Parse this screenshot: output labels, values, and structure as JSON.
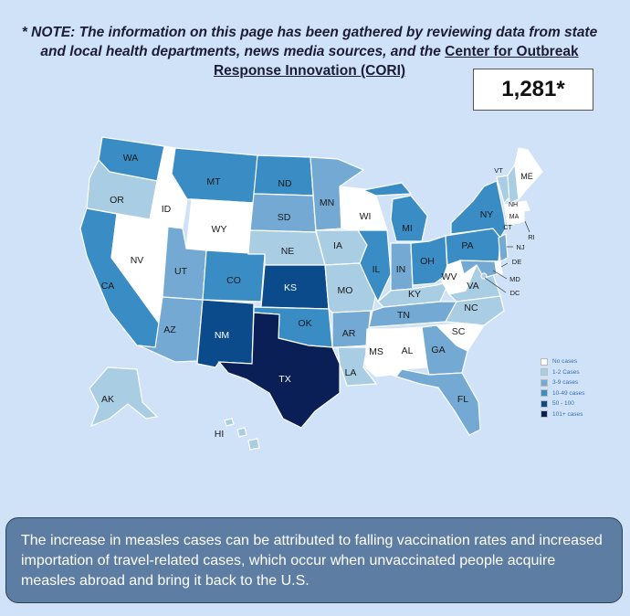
{
  "note": {
    "prefix": "* NOTE: The information on this page has been gathered by reviewing data from state and local health departments, news media sources, and the ",
    "link_text": "Center for Outbreak Response Innovation (CORI)"
  },
  "total_cases": "1,281*",
  "legend": {
    "items": [
      {
        "label": "No cases",
        "color": "#ffffff"
      },
      {
        "label": "1-2 Cases",
        "color": "#a9cde3"
      },
      {
        "label": "3-9 cases",
        "color": "#73a9d3"
      },
      {
        "label": "10-49 cases",
        "color": "#3a8cc4"
      },
      {
        "label": "50 - 100",
        "color": "#0b4b8c"
      },
      {
        "label": "101+ cases",
        "color": "#0a1f55"
      }
    ]
  },
  "states": [
    {
      "code": "WA",
      "level": 3
    },
    {
      "code": "OR",
      "level": 1
    },
    {
      "code": "CA",
      "level": 3
    },
    {
      "code": "ID",
      "level": 0
    },
    {
      "code": "NV",
      "level": 0
    },
    {
      "code": "MT",
      "level": 3
    },
    {
      "code": "WY",
      "level": 0
    },
    {
      "code": "UT",
      "level": 2
    },
    {
      "code": "AZ",
      "level": 2
    },
    {
      "code": "CO",
      "level": 3
    },
    {
      "code": "NM",
      "level": 4
    },
    {
      "code": "ND",
      "level": 3
    },
    {
      "code": "SD",
      "level": 2
    },
    {
      "code": "NE",
      "level": 1
    },
    {
      "code": "KS",
      "level": 4
    },
    {
      "code": "OK",
      "level": 3
    },
    {
      "code": "TX",
      "level": 5
    },
    {
      "code": "MN",
      "level": 2
    },
    {
      "code": "IA",
      "level": 1
    },
    {
      "code": "MO",
      "level": 1
    },
    {
      "code": "AR",
      "level": 2
    },
    {
      "code": "LA",
      "level": 1
    },
    {
      "code": "WI",
      "level": 0
    },
    {
      "code": "IL",
      "level": 3
    },
    {
      "code": "MS",
      "level": 0
    },
    {
      "code": "MI",
      "level": 3
    },
    {
      "code": "IN",
      "level": 2
    },
    {
      "code": "KY",
      "level": 1
    },
    {
      "code": "TN",
      "level": 2
    },
    {
      "code": "AL",
      "level": 0
    },
    {
      "code": "OH",
      "level": 3
    },
    {
      "code": "WV",
      "level": 0
    },
    {
      "code": "VA",
      "level": 1
    },
    {
      "code": "NC",
      "level": 1
    },
    {
      "code": "SC",
      "level": 0
    },
    {
      "code": "GA",
      "level": 2
    },
    {
      "code": "FL",
      "level": 2
    },
    {
      "code": "PA",
      "level": 3
    },
    {
      "code": "NY",
      "level": 3
    },
    {
      "code": "VT",
      "level": 1
    },
    {
      "code": "NH",
      "level": 1
    },
    {
      "code": "ME",
      "level": 0
    },
    {
      "code": "MA",
      "level": 0
    },
    {
      "code": "CT",
      "level": 0
    },
    {
      "code": "RI",
      "level": 0
    },
    {
      "code": "NJ",
      "level": 2
    },
    {
      "code": "DE",
      "level": 0
    },
    {
      "code": "MD",
      "level": 2
    },
    {
      "code": "DC",
      "level": 1
    },
    {
      "code": "AK",
      "level": 1
    },
    {
      "code": "HI",
      "level": 1
    }
  ],
  "info_text": "The increase in measles cases can be attributed to falling vaccination rates and increased importation of travel-related cases, which occur when unvaccinated people acquire measles abroad and bring it back to the U.S."
}
